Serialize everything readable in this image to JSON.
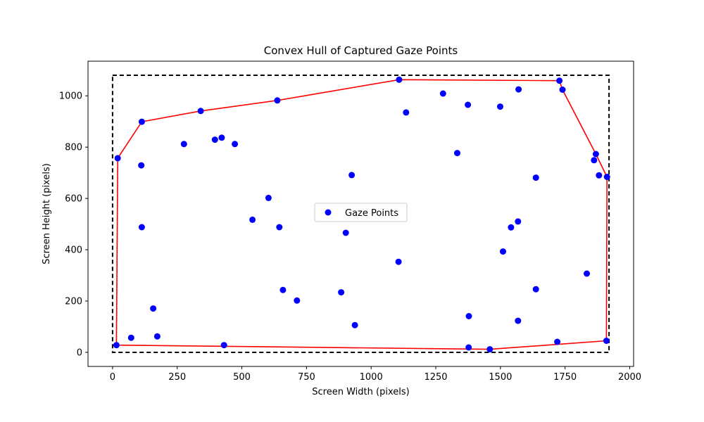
{
  "chart_data": {
    "type": "scatter",
    "title": "Convex Hull of Captured Gaze Points",
    "xlabel": "Screen Width (pixels)",
    "ylabel": "Screen Height (pixels)",
    "xlim": [
      -95,
      2015
    ],
    "ylim": [
      -55,
      1135
    ],
    "xticks": [
      0,
      250,
      500,
      750,
      1000,
      1250,
      1500,
      1750,
      2000
    ],
    "yticks": [
      0,
      200,
      400,
      600,
      800,
      1000
    ],
    "grid": false,
    "legend": {
      "position": "center",
      "entries": [
        "Gaze Points"
      ]
    },
    "colors": {
      "points": "#0000ff",
      "hull": "#ff0000",
      "boundary": "#000000"
    },
    "screen_boundary": {
      "x": [
        0,
        1920
      ],
      "y": [
        0,
        1080
      ]
    },
    "series": [
      {
        "name": "Gaze Points",
        "points": [
          [
            15,
            28
          ],
          [
            20,
            757
          ],
          [
            72,
            57
          ],
          [
            111,
            729
          ],
          [
            113,
            488
          ],
          [
            113,
            899
          ],
          [
            157,
            171
          ],
          [
            173,
            62
          ],
          [
            276,
            812
          ],
          [
            341,
            941
          ],
          [
            396,
            829
          ],
          [
            422,
            837
          ],
          [
            431,
            28
          ],
          [
            473,
            812
          ],
          [
            541,
            517
          ],
          [
            603,
            602
          ],
          [
            637,
            982
          ],
          [
            645,
            488
          ],
          [
            659,
            243
          ],
          [
            713,
            202
          ],
          [
            884,
            234
          ],
          [
            902,
            466
          ],
          [
            925,
            691
          ],
          [
            937,
            106
          ],
          [
            1106,
            353
          ],
          [
            1108,
            1063
          ],
          [
            1135,
            935
          ],
          [
            1278,
            1009
          ],
          [
            1333,
            777
          ],
          [
            1374,
            965
          ],
          [
            1377,
            19
          ],
          [
            1378,
            141
          ],
          [
            1459,
            12
          ],
          [
            1499,
            958
          ],
          [
            1510,
            393
          ],
          [
            1541,
            487
          ],
          [
            1568,
            123
          ],
          [
            1568,
            510
          ],
          [
            1570,
            1025
          ],
          [
            1637,
            681
          ],
          [
            1637,
            246
          ],
          [
            1720,
            41
          ],
          [
            1728,
            1059
          ],
          [
            1740,
            1024
          ],
          [
            1834,
            307
          ],
          [
            1862,
            749
          ],
          [
            1869,
            773
          ],
          [
            1881,
            690
          ],
          [
            1910,
            45
          ],
          [
            1912,
            684
          ]
        ]
      }
    ],
    "hull": [
      [
        15,
        28
      ],
      [
        1459,
        12
      ],
      [
        1910,
        45
      ],
      [
        1912,
        684
      ],
      [
        1869,
        773
      ],
      [
        1740,
        1024
      ],
      [
        1728,
        1059
      ],
      [
        1108,
        1063
      ],
      [
        637,
        982
      ],
      [
        341,
        941
      ],
      [
        113,
        899
      ],
      [
        20,
        757
      ],
      [
        15,
        28
      ]
    ]
  }
}
